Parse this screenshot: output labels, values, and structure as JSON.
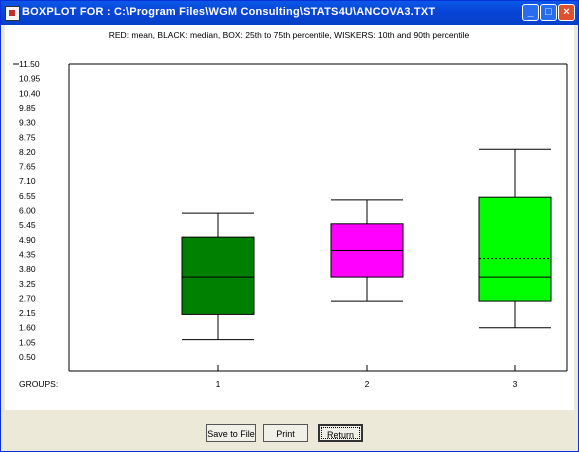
{
  "window": {
    "title": "BOXPLOT FOR : C:\\Program Files\\WGM Consulting\\STATS4U\\ANCOVA3.TXT",
    "controls": {
      "minimize": "_",
      "maximize": "□",
      "close": "×"
    }
  },
  "legend_text": "RED: mean, BLACK: median, BOX: 25th to 75th percentile, WISKERS: 10th and 90th percentile",
  "buttons": {
    "save": "Save to File",
    "print": "Print",
    "return": "Return"
  },
  "chart_data": {
    "type": "boxplot",
    "ylim": [
      0.5,
      11.5
    ],
    "yticks": [
      "0.50",
      "1.05",
      "1.60",
      "2.15",
      "2.70",
      "3.25",
      "3.80",
      "4.35",
      "4.90",
      "5.45",
      "6.00",
      "6.55",
      "7.10",
      "7.65",
      "8.20",
      "8.75",
      "9.30",
      "9.85",
      "10.40",
      "10.95",
      "11.50"
    ],
    "xlabel": "GROUPS:",
    "groups": [
      {
        "label": "1",
        "p10": 1.15,
        "q1": 2.1,
        "median": 3.5,
        "q3": 5.0,
        "p90": 5.9,
        "mean": 3.5,
        "color": "#008000"
      },
      {
        "label": "2",
        "p10": 2.6,
        "q1": 3.5,
        "median": 4.5,
        "q3": 5.5,
        "p90": 6.4,
        "mean": 4.5,
        "color": "#ff00ff"
      },
      {
        "label": "3",
        "p10": 1.6,
        "q1": 2.6,
        "median": 3.5,
        "q3": 6.5,
        "p90": 8.3,
        "mean": 4.2,
        "color": "#00ff00"
      }
    ]
  }
}
